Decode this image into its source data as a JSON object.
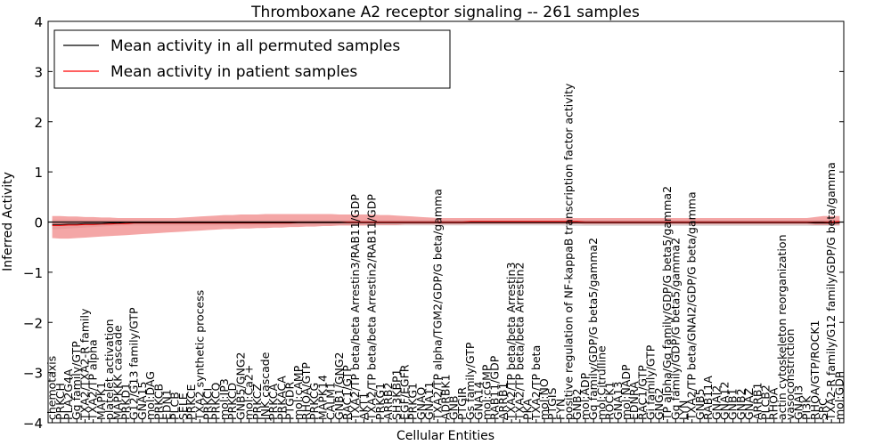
{
  "chart_data": {
    "type": "line",
    "title": "Thromboxane A2 receptor signaling -- 261 samples",
    "xlabel": "Cellular Entities",
    "ylabel": "Inferred Activity",
    "ylim": [
      -4,
      4
    ],
    "yticks": [
      -4,
      -3,
      -2,
      -1,
      0,
      1,
      2,
      3,
      4
    ],
    "legend": {
      "position": "top-left",
      "entries": [
        {
          "name": "Mean activity in all permuted samples",
          "color": "#000000"
        },
        {
          "name": "Mean activity in patient samples",
          "color": "#ff0000"
        }
      ]
    },
    "categories": [
      "chemotaxis",
      "PRKCH",
      "PLA2G4A",
      "Gq family/GTP",
      "TXA2/TXA2-R family",
      "TXA2/TP alpha",
      "MAPK1",
      "platelet activation",
      "MAPKKK cascade",
      "PRKD1",
      "G12/G13 family/GTP",
      "GNA15",
      "mol:DAG",
      "PRKCB",
      "EDN1",
      "PLCB",
      "SELE",
      "PRKCE",
      "TXA2 synthetic process",
      "PRKCI",
      "PRKCQ",
      "mol:IP3",
      "PRKCD",
      "GNB5/GNG2",
      "mol:Ca2+",
      "PRKCZ",
      "JNK cascade",
      "PRKCA",
      "PRKACA",
      "PTGDR",
      "mol:cAMP",
      "RHOA/GTP",
      "PRKCG",
      "MAPK14",
      "CALM1",
      "GNB1/GNG2",
      "RAC1/GTP",
      "TXA2/TP beta/beta Arrestin3/RAB11/GDP",
      "AKT1",
      "TXA2/TP beta/beta Arrestin2/RAB11/GDP",
      "PRKG1",
      "ARRB2",
      "SH3KBP1",
      "EGF/EGFR",
      "PRKG1",
      "GNAQ",
      "GNA11",
      "TXA2/TP alpha/TGM2/GDP/G beta/gamma",
      "ADRBK1",
      "GNB",
      "PTGIR",
      "Gs family/GTP",
      "GNA14",
      "mol:cGMP",
      "RAB11/GDP",
      "ARRB1",
      "TXA2/TP beta/beta Arrestin3",
      "TXA2/TP beta/beta Arrestin2",
      "PKA",
      "TXA2/TP beta",
      "mol:NO",
      "PTGIS",
      "FYN",
      "positive regulation of NF-kappaB transcription factor activity",
      "GNB2",
      "mol:ADP",
      "Gq family/GDP/G beta5/gamma2",
      "mol:Citrulline",
      "ROCK1",
      "GNA13",
      "mol:NADP",
      "EDNRA",
      "RAC1/GTP",
      "Gi family/GTP",
      "GNG2",
      "TP alpha/Gq family/GDP/G beta5/gamma2",
      "Gq family/GDP/G beta5/gamma2",
      "LYN",
      "TXA2/TP beta/GNAI2/GDP/G beta/gamma",
      "GNB5",
      "RAB11A",
      "GNAI2",
      "GNA12",
      "GNB1",
      "GNB2",
      "GNAZ",
      "ARRB1",
      "PLCB2",
      "RHOA",
      "actin cytoskeleton reorganization",
      "vasoconstriction",
      "GNAI3",
      "PI3K",
      "RHOA/GTP/ROCK1",
      "SRC",
      "TXA2-R family/G12 family/GDP/G beta/gamma",
      "mol:GDP"
    ],
    "n_categories": 97,
    "series": [
      {
        "name": "Mean activity in all permuted samples",
        "color": "#000000",
        "values": [
          -0.05,
          -0.05,
          -0.04,
          -0.04,
          -0.03,
          -0.03,
          -0.03,
          -0.02,
          -0.02,
          -0.01,
          -0.01,
          -0.01,
          -0.01,
          -0.01,
          -0.01,
          -0.01,
          -0.01,
          -0.01,
          -0.01,
          -0.01,
          -0.01,
          -0.01,
          -0.01,
          -0.01,
          -0.01,
          -0.01,
          -0.01,
          -0.01,
          -0.01,
          -0.01,
          -0.01,
          -0.01,
          -0.01,
          -0.01,
          -0.01,
          -0.01,
          -0.01,
          -0.01,
          -0.01,
          -0.01,
          -0.01,
          -0.01,
          -0.01,
          -0.01,
          -0.01,
          -0.01,
          -0.01,
          -0.01,
          -0.01,
          -0.01,
          -0.01,
          -0.01,
          -0.01,
          -0.01,
          -0.01,
          -0.01,
          -0.01,
          -0.01,
          -0.01,
          -0.01,
          -0.01,
          -0.01,
          -0.01,
          -0.01,
          -0.01,
          -0.01,
          -0.01,
          -0.01,
          -0.01,
          -0.01,
          -0.01,
          -0.01,
          -0.01,
          -0.01,
          -0.01,
          -0.01,
          -0.01,
          -0.01,
          -0.01,
          -0.01,
          -0.01,
          -0.01,
          -0.01,
          -0.01,
          -0.01,
          -0.01,
          -0.01,
          -0.01,
          -0.01,
          -0.01,
          -0.01,
          -0.01,
          -0.01,
          -0.02,
          -0.02,
          -0.02,
          -0.02
        ],
        "band_low": [
          -0.15,
          -0.14,
          -0.13,
          -0.12,
          -0.11,
          -0.1,
          -0.09,
          -0.08,
          -0.08,
          -0.07,
          -0.07,
          -0.07,
          -0.07,
          -0.07,
          -0.07,
          -0.07,
          -0.07,
          -0.07,
          -0.07,
          -0.07,
          -0.07,
          -0.07,
          -0.07,
          -0.07,
          -0.07,
          -0.07,
          -0.07,
          -0.07,
          -0.07,
          -0.07,
          -0.07,
          -0.07,
          -0.07,
          -0.07,
          -0.07,
          -0.07,
          -0.07,
          -0.07,
          -0.07,
          -0.07,
          -0.07,
          -0.07,
          -0.07,
          -0.07,
          -0.07,
          -0.07,
          -0.07,
          -0.07,
          -0.07,
          -0.07,
          -0.07,
          -0.07,
          -0.07,
          -0.07,
          -0.07,
          -0.07,
          -0.07,
          -0.07,
          -0.07,
          -0.07,
          -0.07,
          -0.07,
          -0.07,
          -0.08,
          -0.08,
          -0.08,
          -0.08,
          -0.08,
          -0.08,
          -0.08,
          -0.08,
          -0.08,
          -0.08,
          -0.08,
          -0.08,
          -0.08,
          -0.08,
          -0.08,
          -0.08,
          -0.08,
          -0.08,
          -0.08,
          -0.08,
          -0.08,
          -0.08,
          -0.08,
          -0.08,
          -0.08,
          -0.08,
          -0.08,
          -0.08,
          -0.08,
          -0.08,
          -0.08,
          -0.08,
          -0.08,
          -0.08
        ],
        "band_high": [
          0.05,
          0.05,
          0.05,
          0.05,
          0.04,
          0.04,
          0.04,
          0.04,
          0.04,
          0.04,
          0.04,
          0.04,
          0.04,
          0.04,
          0.04,
          0.04,
          0.04,
          0.04,
          0.04,
          0.04,
          0.04,
          0.04,
          0.04,
          0.04,
          0.04,
          0.04,
          0.04,
          0.04,
          0.04,
          0.04,
          0.04,
          0.04,
          0.04,
          0.04,
          0.04,
          0.04,
          0.04,
          0.04,
          0.04,
          0.04,
          0.04,
          0.04,
          0.04,
          0.04,
          0.04,
          0.04,
          0.04,
          0.04,
          0.04,
          0.04,
          0.04,
          0.04,
          0.04,
          0.04,
          0.04,
          0.04,
          0.04,
          0.04,
          0.04,
          0.04,
          0.04,
          0.04,
          0.04,
          0.04,
          0.04,
          0.04,
          0.04,
          0.04,
          0.04,
          0.04,
          0.04,
          0.04,
          0.04,
          0.04,
          0.04,
          0.04,
          0.04,
          0.04,
          0.04,
          0.04,
          0.04,
          0.04,
          0.04,
          0.04,
          0.04,
          0.04,
          0.04,
          0.04,
          0.04,
          0.04,
          0.04,
          0.04,
          0.04,
          0.04,
          0.04,
          0.04,
          0.04
        ]
      },
      {
        "name": "Mean activity in patient samples",
        "color": "#ff0000",
        "values": [
          -0.07,
          -0.07,
          -0.06,
          -0.06,
          -0.05,
          -0.05,
          -0.04,
          -0.04,
          -0.03,
          -0.03,
          -0.02,
          -0.02,
          -0.02,
          -0.02,
          -0.02,
          -0.02,
          -0.02,
          -0.02,
          -0.02,
          -0.02,
          -0.02,
          -0.02,
          -0.02,
          -0.02,
          -0.02,
          -0.02,
          -0.02,
          -0.02,
          -0.02,
          -0.02,
          -0.01,
          -0.01,
          -0.01,
          -0.01,
          -0.01,
          -0.01,
          0.0,
          0.0,
          0.0,
          0.0,
          0.0,
          0.0,
          0.0,
          0.0,
          0.0,
          0.0,
          0.0,
          0.0,
          0.0,
          0.0,
          0.0,
          0.01,
          0.01,
          0.01,
          0.01,
          0.01,
          0.01,
          0.01,
          0.01,
          0.01,
          0.01,
          0.01,
          0.01,
          0.01,
          0.01,
          0.0,
          0.0,
          0.0,
          0.0,
          0.0,
          0.0,
          0.0,
          0.0,
          0.0,
          0.0,
          0.0,
          0.0,
          0.0,
          0.0,
          0.0,
          0.0,
          0.0,
          0.0,
          0.0,
          0.0,
          0.0,
          0.0,
          0.0,
          0.0,
          0.0,
          0.0,
          0.0,
          0.0,
          -0.01,
          -0.01,
          0.0,
          0.01
        ],
        "band_low": [
          -0.32,
          -0.33,
          -0.33,
          -0.32,
          -0.31,
          -0.3,
          -0.29,
          -0.28,
          -0.27,
          -0.26,
          -0.25,
          -0.24,
          -0.23,
          -0.22,
          -0.21,
          -0.2,
          -0.19,
          -0.18,
          -0.17,
          -0.16,
          -0.15,
          -0.14,
          -0.14,
          -0.13,
          -0.13,
          -0.12,
          -0.12,
          -0.11,
          -0.11,
          -0.1,
          -0.1,
          -0.09,
          -0.09,
          -0.08,
          -0.08,
          -0.07,
          -0.07,
          -0.07,
          -0.07,
          -0.06,
          -0.06,
          -0.06,
          -0.06,
          -0.05,
          -0.05,
          -0.05,
          -0.05,
          -0.05,
          -0.05,
          -0.05,
          -0.05,
          -0.04,
          -0.04,
          -0.04,
          -0.04,
          -0.04,
          -0.04,
          -0.04,
          -0.04,
          -0.04,
          -0.04,
          -0.04,
          -0.04,
          -0.04,
          -0.04,
          -0.05,
          -0.05,
          -0.05,
          -0.05,
          -0.05,
          -0.05,
          -0.05,
          -0.05,
          -0.05,
          -0.05,
          -0.05,
          -0.05,
          -0.05,
          -0.05,
          -0.05,
          -0.05,
          -0.05,
          -0.05,
          -0.05,
          -0.05,
          -0.05,
          -0.05,
          -0.05,
          -0.05,
          -0.05,
          -0.05,
          -0.05,
          -0.05,
          -0.06,
          -0.06,
          -0.06,
          -0.06
        ],
        "band_high": [
          0.12,
          0.12,
          0.11,
          0.11,
          0.1,
          0.1,
          0.09,
          0.09,
          0.08,
          0.08,
          0.08,
          0.08,
          0.08,
          0.08,
          0.08,
          0.08,
          0.09,
          0.1,
          0.11,
          0.12,
          0.13,
          0.14,
          0.14,
          0.15,
          0.15,
          0.15,
          0.16,
          0.16,
          0.16,
          0.16,
          0.16,
          0.16,
          0.16,
          0.16,
          0.16,
          0.15,
          0.15,
          0.15,
          0.15,
          0.15,
          0.14,
          0.14,
          0.13,
          0.12,
          0.11,
          0.1,
          0.09,
          0.08,
          0.08,
          0.08,
          0.08,
          0.08,
          0.08,
          0.08,
          0.08,
          0.08,
          0.08,
          0.08,
          0.08,
          0.08,
          0.08,
          0.08,
          0.08,
          0.08,
          0.08,
          0.08,
          0.08,
          0.08,
          0.08,
          0.08,
          0.08,
          0.08,
          0.08,
          0.08,
          0.08,
          0.08,
          0.08,
          0.08,
          0.08,
          0.08,
          0.08,
          0.08,
          0.08,
          0.08,
          0.08,
          0.08,
          0.08,
          0.08,
          0.08,
          0.08,
          0.08,
          0.08,
          0.08,
          0.1,
          0.12,
          0.12,
          0.12
        ]
      }
    ]
  },
  "colors": {
    "red_band": "#f08080",
    "gray_band": "#c8c8c8"
  }
}
